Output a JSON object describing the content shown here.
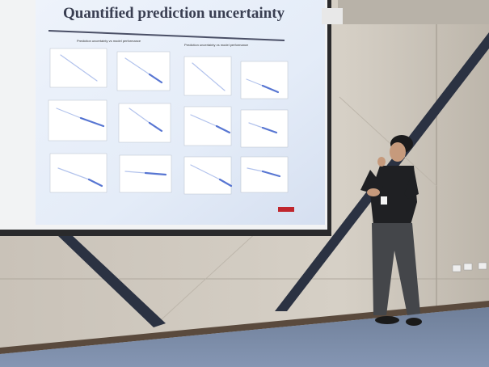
{
  "slide": {
    "title": "Quantified prediction uncertainty",
    "left_heading": "Prediction uncertainty vs model performance",
    "right_heading": "Prediction uncertainty vs model performance"
  }
}
